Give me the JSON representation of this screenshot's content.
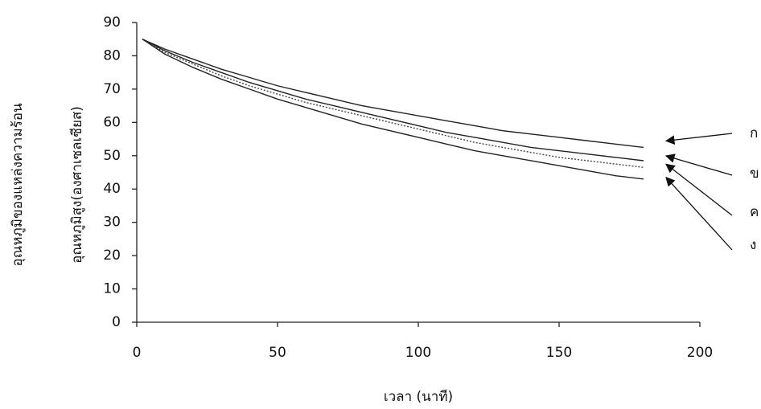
{
  "chart_data": {
    "type": "line",
    "ylabel": [
      "อุณหภูมิของแหล่งความร้อน",
      "อุณหภูมิสูง(องศาเซลเซียส)"
    ],
    "xlabel": "เวลา (นาที)",
    "x": [
      2,
      10,
      20,
      30,
      40,
      50,
      60,
      70,
      80,
      90,
      100,
      110,
      120,
      130,
      140,
      150,
      160,
      170,
      180
    ],
    "series": [
      {
        "name": "ก",
        "color": "#222222",
        "dashed": false,
        "values": [
          85,
          82,
          79,
          76,
          73.5,
          71,
          69,
          67,
          65,
          63.5,
          62,
          60.5,
          59,
          57.5,
          56.5,
          55.5,
          54.5,
          53.5,
          52.5
        ]
      },
      {
        "name": "ข",
        "color": "#222222",
        "dashed": false,
        "values": [
          85,
          81.5,
          78,
          75,
          72,
          69.5,
          67,
          65,
          63,
          61,
          59,
          57,
          55.5,
          54,
          52.5,
          51.5,
          50.5,
          49.5,
          48.5
        ]
      },
      {
        "name": "ค",
        "color": "#444444",
        "dashed": true,
        "values": [
          85,
          81,
          77.5,
          74,
          71,
          68.5,
          66,
          64,
          62,
          60,
          58,
          56,
          54,
          52.5,
          51,
          49.5,
          48.5,
          47.5,
          46.5
        ]
      },
      {
        "name": "ง",
        "color": "#222222",
        "dashed": false,
        "values": [
          85,
          80.5,
          76.5,
          73,
          70,
          67,
          64.5,
          62,
          59.5,
          57.5,
          55.5,
          53.5,
          51.5,
          50,
          48.5,
          47,
          45.5,
          44,
          43
        ]
      }
    ],
    "xlim": [
      0,
      200
    ],
    "xticks": [
      0,
      50,
      100,
      150,
      200
    ],
    "ylim": [
      0,
      90
    ],
    "yticks": [
      0,
      10,
      20,
      30,
      40,
      50,
      60,
      70,
      80,
      90
    ]
  }
}
